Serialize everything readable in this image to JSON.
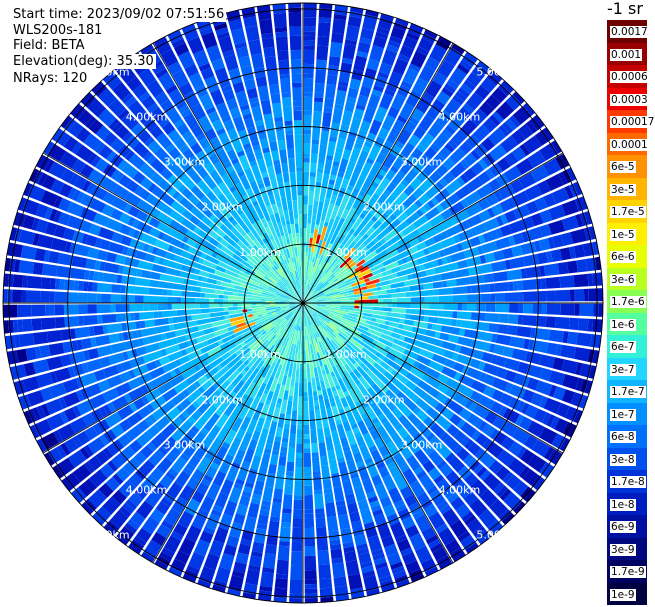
{
  "info": {
    "start_time": "Start time: 2023/09/02 07:51:56",
    "instrument": "WLS200s-181",
    "field": "Field: BETA",
    "elevation": "Elevation(deg): 35.30",
    "nrays": "NRays: 120"
  },
  "colorbar": {
    "unit": "-1 sr",
    "tick_labels": [
      "0.0017",
      "0.001",
      "0.0006",
      "0.0003",
      "0.00017",
      "0.0001",
      "6e-5",
      "3e-5",
      "1.7e-5",
      "1e-5",
      "6e-6",
      "3e-6",
      "1.7e-6",
      "1e-6",
      "6e-7",
      "3e-7",
      "1.7e-7",
      "1e-7",
      "6e-8",
      "3e-8",
      "1.7e-8",
      "1e-8",
      "6e-9",
      "3e-9",
      "1.7e-9",
      "1e-9"
    ],
    "colors": [
      "#6e0000",
      "#9a0000",
      "#c40000",
      "#ee0000",
      "#ff3a00",
      "#ff6a00",
      "#ff9200",
      "#ffb400",
      "#ffd200",
      "#fff000",
      "#e8ff00",
      "#baff22",
      "#88ff55",
      "#55ffa0",
      "#33f0d8",
      "#22d6ff",
      "#11b4ff",
      "#0090ff",
      "#0070ff",
      "#0050ee",
      "#0034d8",
      "#001ec0",
      "#0010a0",
      "#000880",
      "#000460",
      "#000240"
    ]
  },
  "chart_data": {
    "type": "ppi",
    "range_rings_km": [
      1,
      2,
      3,
      4,
      5
    ],
    "range_labels": [
      "1.00km",
      "2.00km",
      "3.00km",
      "4.00km",
      "5.00km"
    ],
    "max_range_km": 5.1,
    "nrays": 120,
    "spoke_count": 12,
    "elevation_deg": 35.3
  }
}
